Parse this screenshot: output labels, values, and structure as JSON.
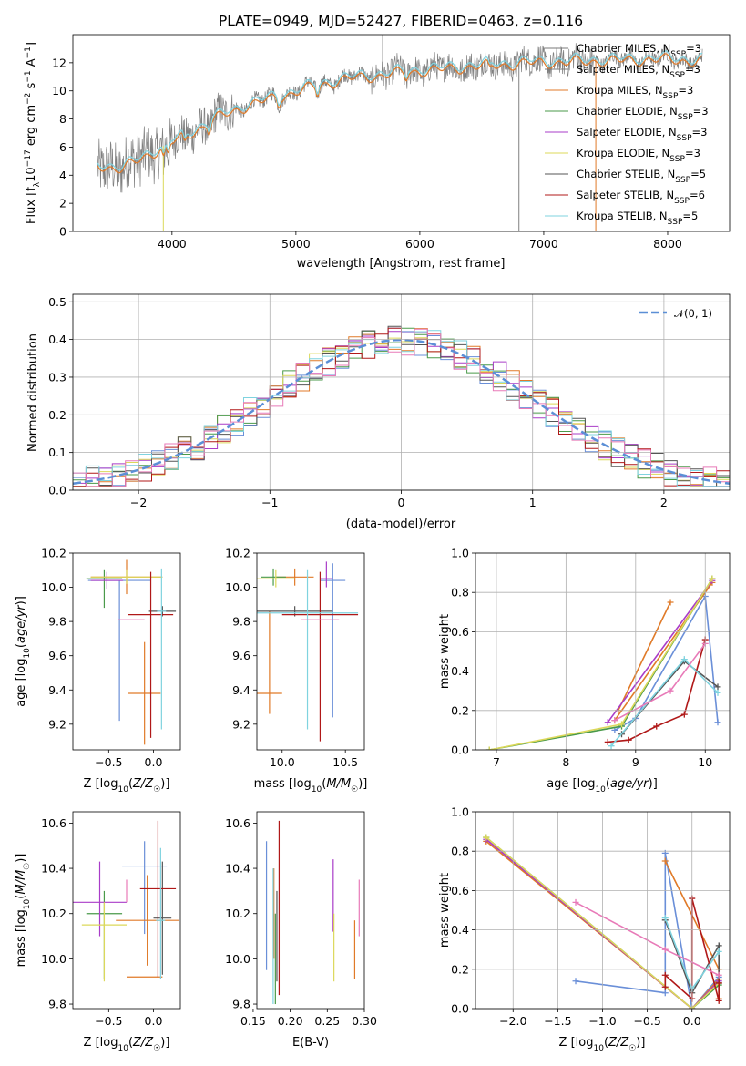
{
  "figure": {
    "title": "PLATE=0949, MJD=52427, FIBERID=0463, z=0.116"
  },
  "palette": {
    "Chabrier MILES": "#6a8fd8",
    "Salpeter MILES": "#e07a28",
    "Kroupa MILES": "#e07a28",
    "Chabrier ELODIE": "#4a9a4a",
    "Salpeter ELODIE": "#a93cc8",
    "Kroupa ELODIE": "#dcd85a",
    "Chabrier STELIB": "#555555",
    "Salpeter STELIB": "#b01818",
    "Kroupa STELIB": "#7fd3df",
    "data": "#808080",
    "gauss": "#5b8fd6",
    "pink": "#e87ab8"
  },
  "chart_data": [
    {
      "id": "spectrum",
      "type": "line",
      "title": "PLATE=0949, MJD=52427, FIBERID=0463, z=0.116",
      "xlabel": "wavelength [Angstrom, rest frame]",
      "ylabel": "Flux [f_λ10^-17 erg cm^-2 s^-1 A^-1]",
      "xlim": [
        3200,
        8500
      ],
      "ylim": [
        0,
        14
      ],
      "xticks": [
        "4000",
        "5000",
        "6000",
        "7000",
        "8000"
      ],
      "yticks": [
        "0",
        "2",
        "4",
        "6",
        "8",
        "10",
        "12"
      ],
      "continuum": {
        "x": [
          3400,
          3600,
          3800,
          4000,
          4200,
          4400,
          4600,
          4800,
          5000,
          5200,
          5400,
          5600,
          5800,
          6000,
          6200,
          6400,
          6600,
          6800,
          7000,
          7200,
          7400,
          7600,
          7800,
          8000,
          8200,
          8280
        ],
        "y": [
          4.8,
          4.5,
          5.5,
          6.4,
          7.3,
          8.3,
          9.0,
          9.5,
          10.0,
          10.5,
          10.9,
          11.1,
          11.3,
          11.5,
          11.6,
          11.8,
          11.9,
          12.0,
          12.1,
          12.1,
          12.2,
          12.2,
          12.3,
          12.3,
          12.2,
          12.2
        ]
      },
      "data_range": [
        3400,
        8280
      ],
      "legend": [
        "Chabrier MILES, N_SSP=3",
        "Salpeter MILES, N_SSP=3",
        "Kroupa MILES, N_SSP=3",
        "Chabrier ELODIE, N_SSP=3",
        "Salpeter ELODIE, N_SSP=3",
        "Kroupa ELODIE, N_SSP=3",
        "Chabrier STELIB, N_SSP=5",
        "Salpeter STELIB, N_SSP=6",
        "Kroupa STELIB, N_SSP=5"
      ],
      "legend_position": "right"
    },
    {
      "id": "residuals",
      "type": "line",
      "xlabel": "(data-model)/error",
      "ylabel": "Normed distribution",
      "xlim": [
        -2.5,
        2.5
      ],
      "ylim": [
        0,
        0.52
      ],
      "xticks": [
        "−2",
        "−1",
        "0",
        "1",
        "2"
      ],
      "yticks": [
        "0.0",
        "0.1",
        "0.2",
        "0.3",
        "0.4",
        "0.5"
      ],
      "grid": true,
      "legend": [
        "𝒩(0, 1)"
      ],
      "legend_position": "top-right",
      "gauss": {
        "mu": 0,
        "sigma": 1
      }
    },
    {
      "id": "age-vs-Z",
      "type": "scatter",
      "xlabel": "Z [log10(Z/Z☉)]",
      "ylabel": "age  [log10(age/yr)]",
      "xlim": [
        -0.9,
        0.3
      ],
      "ylim": [
        9.05,
        10.2
      ],
      "xticks": [
        "−0.5",
        "0.0"
      ],
      "yticks": [
        "9.2",
        "9.4",
        "9.6",
        "9.8",
        "10.0",
        "10.2"
      ],
      "points": [
        {
          "model": "Chabrier MILES",
          "x": -0.38,
          "y": 10.04,
          "xerr": 0.35,
          "yerr": [
            0.82,
            0.0
          ]
        },
        {
          "model": "Salpeter MILES",
          "x": -0.1,
          "y": 9.38,
          "xerr": 0.18,
          "yerr": [
            0.3,
            0.3
          ]
        },
        {
          "model": "Kroupa MILES",
          "x": -0.3,
          "y": 10.06,
          "xerr": 0.4,
          "yerr": [
            0.1,
            0.1
          ]
        },
        {
          "model": "Chabrier ELODIE",
          "x": -0.55,
          "y": 10.05,
          "xerr": 0.2,
          "yerr": [
            0.17,
            0.05
          ]
        },
        {
          "model": "Salpeter ELODIE",
          "x": -0.52,
          "y": 10.04,
          "xerr": 0.18,
          "yerr": [
            0.05,
            0.05
          ]
        },
        {
          "model": "Kroupa ELODIE",
          "x": -0.3,
          "y": 10.06,
          "xerr": 0.4,
          "yerr": [
            0.04,
            0.04
          ]
        },
        {
          "model": "Chabrier STELIB",
          "x": 0.1,
          "y": 9.86,
          "xerr": 0.15,
          "yerr": [
            0.03,
            0.03
          ]
        },
        {
          "model": "Salpeter STELIB",
          "x": -0.03,
          "y": 9.84,
          "xerr": 0.25,
          "yerr": [
            0.72,
            0.25
          ]
        },
        {
          "model": "Kroupa STELIB",
          "x": 0.09,
          "y": 9.86,
          "xerr": 0.05,
          "yerr": [
            0.69,
            0.25
          ]
        },
        {
          "model": "pink",
          "x": -0.25,
          "y": 9.81,
          "xerr": 0.15,
          "yerr": [
            0.0,
            0.0
          ]
        }
      ]
    },
    {
      "id": "age-vs-mass",
      "type": "scatter",
      "xlabel": "mass [log10(M/M☉)]",
      "ylabel": "",
      "xlim": [
        9.8,
        10.65
      ],
      "ylim": [
        9.05,
        10.2
      ],
      "xticks": [
        "10.0",
        "10.5"
      ],
      "yticks": [
        "9.2",
        "9.4",
        "9.6",
        "9.8",
        "10.0",
        "10.2"
      ],
      "points": [
        {
          "model": "Chabrier MILES",
          "x": 10.4,
          "y": 10.04,
          "xerr": 0.1,
          "yerr": [
            0.8,
            0.1
          ]
        },
        {
          "model": "Salpeter MILES",
          "x": 9.9,
          "y": 9.38,
          "xerr": 0.1,
          "yerr": [
            0.12,
            0.48
          ]
        },
        {
          "model": "Kroupa MILES",
          "x": 10.1,
          "y": 10.06,
          "xerr": 0.15,
          "yerr": [
            0.05,
            0.05
          ]
        },
        {
          "model": "Chabrier ELODIE",
          "x": 9.93,
          "y": 10.06,
          "xerr": 0.1,
          "yerr": [
            0.05,
            0.05
          ]
        },
        {
          "model": "Salpeter ELODIE",
          "x": 10.35,
          "y": 10.05,
          "xerr": 0.05,
          "yerr": [
            0.05,
            0.1
          ]
        },
        {
          "model": "Kroupa ELODIE",
          "x": 9.95,
          "y": 10.05,
          "xerr": 0.15,
          "yerr": [
            0.05,
            0.05
          ]
        },
        {
          "model": "Chabrier STELIB",
          "x": 10.1,
          "y": 9.86,
          "xerr": 0.3,
          "yerr": [
            0.03,
            0.03
          ]
        },
        {
          "model": "Salpeter STELIB",
          "x": 10.3,
          "y": 9.84,
          "xerr": 0.3,
          "yerr": [
            0.74,
            0.25
          ]
        },
        {
          "model": "Kroupa STELIB",
          "x": 10.2,
          "y": 9.85,
          "xerr": 0.4,
          "yerr": [
            0.68,
            0.25
          ]
        },
        {
          "model": "pink",
          "x": 10.3,
          "y": 9.81,
          "xerr": 0.15,
          "yerr": [
            0.0,
            0.0
          ]
        }
      ]
    },
    {
      "id": "massweight-vs-age",
      "type": "line",
      "xlabel": "age  [log10(age/yr)]",
      "ylabel": "mass weight",
      "xlim": [
        6.7,
        10.35
      ],
      "ylim": [
        0,
        1.0
      ],
      "xticks": [
        "7",
        "8",
        "9",
        "10"
      ],
      "yticks": [
        "0.0",
        "0.2",
        "0.4",
        "0.6",
        "0.8",
        "1.0"
      ],
      "grid": true,
      "series": [
        {
          "model": "Chabrier MILES",
          "x": [
            8.7,
            9.0,
            10.0,
            10.18
          ],
          "y": [
            0.1,
            0.16,
            0.78,
            0.14
          ]
        },
        {
          "model": "Salpeter MILES",
          "x": [
            8.75,
            9.5
          ],
          "y": [
            0.2,
            0.75
          ]
        },
        {
          "model": "Kroupa MILES",
          "x": [
            8.7,
            10.1
          ],
          "y": [
            0.15,
            0.85
          ]
        },
        {
          "model": "Chabrier ELODIE",
          "x": [
            6.9,
            8.8,
            10.1
          ],
          "y": [
            0.0,
            0.12,
            0.87
          ]
        },
        {
          "model": "Salpeter ELODIE",
          "x": [
            8.6,
            10.1
          ],
          "y": [
            0.14,
            0.86
          ]
        },
        {
          "model": "Kroupa ELODIE",
          "x": [
            6.9,
            8.8,
            10.1
          ],
          "y": [
            0.0,
            0.13,
            0.87
          ]
        },
        {
          "model": "Chabrier STELIB",
          "x": [
            8.8,
            9.7,
            10.18
          ],
          "y": [
            0.08,
            0.45,
            0.32
          ]
        },
        {
          "model": "Salpeter STELIB",
          "x": [
            8.6,
            8.9,
            9.3,
            9.7,
            10.0
          ],
          "y": [
            0.04,
            0.05,
            0.12,
            0.18,
            0.56
          ]
        },
        {
          "model": "Kroupa STELIB",
          "x": [
            8.65,
            9.7,
            10.18
          ],
          "y": [
            0.02,
            0.46,
            0.29
          ]
        },
        {
          "model": "pink",
          "x": [
            8.7,
            9.5,
            10.0
          ],
          "y": [
            0.15,
            0.3,
            0.54
          ]
        }
      ]
    },
    {
      "id": "mass-vs-Z",
      "type": "scatter",
      "xlabel": "Z [log10(Z/Z☉)]",
      "ylabel": "mass [log10(M/M☉)]",
      "xlim": [
        -0.9,
        0.3
      ],
      "ylim": [
        9.78,
        10.65
      ],
      "xticks": [
        "−0.5",
        "0.0"
      ],
      "yticks": [
        "9.8",
        "10.0",
        "10.2",
        "10.4",
        "10.6"
      ],
      "points": [
        {
          "model": "Chabrier MILES",
          "x": -0.1,
          "y": 10.41,
          "xerr": 0.25,
          "yerr": [
            0.3,
            0.11
          ]
        },
        {
          "model": "Salpeter MILES",
          "x": -0.1,
          "y": 9.92,
          "xerr": 0.2,
          "yerr": [
            0.0,
            0.0
          ]
        },
        {
          "model": "Kroupa MILES",
          "x": -0.07,
          "y": 10.17,
          "xerr": 0.35,
          "yerr": [
            0.2,
            0.2
          ]
        },
        {
          "model": "Chabrier ELODIE",
          "x": -0.55,
          "y": 10.2,
          "xerr": 0.2,
          "yerr": [
            0.29,
            0.1
          ]
        },
        {
          "model": "Salpeter ELODIE",
          "x": -0.6,
          "y": 10.25,
          "xerr": 0.3,
          "yerr": [
            0.15,
            0.18
          ]
        },
        {
          "model": "Kroupa ELODIE",
          "x": -0.55,
          "y": 10.15,
          "xerr": 0.25,
          "yerr": [
            0.25,
            0.1
          ]
        },
        {
          "model": "Chabrier STELIB",
          "x": 0.1,
          "y": 10.18,
          "xerr": 0.1,
          "yerr": [
            0.25,
            0.25
          ]
        },
        {
          "model": "Salpeter STELIB",
          "x": 0.05,
          "y": 10.31,
          "xerr": 0.2,
          "yerr": [
            0.39,
            0.3
          ]
        },
        {
          "model": "Kroupa STELIB",
          "x": 0.08,
          "y": 10.17,
          "xerr": 0.05,
          "yerr": [
            0.26,
            0.32
          ]
        },
        {
          "model": "pink",
          "x": -0.3,
          "y": 10.3,
          "xerr": 0.0,
          "yerr": [
            0.05,
            0.05
          ]
        }
      ]
    },
    {
      "id": "mass-vs-EBV",
      "type": "scatter",
      "xlabel": "E(B-V)",
      "ylabel": "",
      "xlim": [
        0.155,
        0.3
      ],
      "ylim": [
        9.78,
        10.65
      ],
      "xticks": [
        "0.15",
        "0.20",
        "0.25",
        "0.30"
      ],
      "yticks": [
        "9.8",
        "10.0",
        "10.2",
        "10.4",
        "10.6"
      ],
      "points": [
        {
          "model": "Chabrier MILES",
          "x": 0.168,
          "y": 10.2,
          "xerr": 0.0,
          "yerr": [
            0.25,
            0.32
          ]
        },
        {
          "model": "Salpeter MILES",
          "x": 0.287,
          "y": 10.02,
          "xerr": 0.0,
          "yerr": [
            0.11,
            0.15
          ]
        },
        {
          "model": "Kroupa MILES",
          "x": 0.178,
          "y": 10.2,
          "xerr": 0.0,
          "yerr": [
            0.2,
            0.2
          ]
        },
        {
          "model": "Chabrier ELODIE",
          "x": 0.18,
          "y": 10.05,
          "xerr": 0.0,
          "yerr": [
            0.25,
            0.15
          ]
        },
        {
          "model": "Salpeter ELODIE",
          "x": 0.258,
          "y": 10.3,
          "xerr": 0.0,
          "yerr": [
            0.18,
            0.14
          ]
        },
        {
          "model": "Kroupa ELODIE",
          "x": 0.259,
          "y": 10.06,
          "xerr": 0.0,
          "yerr": [
            0.16,
            0.14
          ]
        },
        {
          "model": "Chabrier STELIB",
          "x": 0.182,
          "y": 10.2,
          "xerr": 0.0,
          "yerr": [
            0.3,
            0.1
          ]
        },
        {
          "model": "Salpeter STELIB",
          "x": 0.185,
          "y": 10.2,
          "xerr": 0.0,
          "yerr": [
            0.36,
            0.41
          ]
        },
        {
          "model": "Kroupa STELIB",
          "x": 0.177,
          "y": 10.1,
          "xerr": 0.0,
          "yerr": [
            0.3,
            0.3
          ]
        },
        {
          "model": "pink",
          "x": 0.293,
          "y": 10.22,
          "xerr": 0.0,
          "yerr": [
            0.12,
            0.13
          ]
        }
      ]
    },
    {
      "id": "massweight-vs-Z",
      "type": "line",
      "xlabel": "Z [log10(Z/Z☉)]",
      "ylabel": "mass weight",
      "xlim": [
        -2.42,
        0.42
      ],
      "ylim": [
        0,
        1.0
      ],
      "xticks": [
        "−2.0",
        "−1.5",
        "−1.0",
        "−0.5",
        "0.0"
      ],
      "yticks": [
        "0.0",
        "0.2",
        "0.4",
        "0.6",
        "0.8",
        "1.0"
      ],
      "grid": true,
      "series": [
        {
          "model": "Chabrier MILES",
          "x": [
            -1.3,
            -0.3,
            -0.3,
            0.0,
            0.3
          ],
          "y": [
            0.14,
            0.08,
            0.79,
            0.0,
            0.16
          ]
        },
        {
          "model": "Salpeter MILES",
          "x": [
            -0.3,
            0.3,
            0.3
          ],
          "y": [
            0.75,
            0.2,
            0.05
          ]
        },
        {
          "model": "Kroupa MILES",
          "x": [
            -2.3,
            0.0,
            0.3
          ],
          "y": [
            0.85,
            0.0,
            0.15
          ]
        },
        {
          "model": "Chabrier ELODIE",
          "x": [
            -2.3,
            0.0,
            0.3
          ],
          "y": [
            0.87,
            0.0,
            0.12
          ]
        },
        {
          "model": "Salpeter ELODIE",
          "x": [
            -2.3,
            0.0,
            0.3
          ],
          "y": [
            0.86,
            0.0,
            0.14
          ]
        },
        {
          "model": "Kroupa ELODIE",
          "x": [
            -2.3,
            0.0,
            0.3
          ],
          "y": [
            0.87,
            0.0,
            0.13
          ]
        },
        {
          "model": "Chabrier STELIB",
          "x": [
            -0.3,
            0.0,
            0.3,
            0.3
          ],
          "y": [
            0.45,
            0.08,
            0.32,
            0.13
          ]
        },
        {
          "model": "Salpeter STELIB",
          "x": [
            -0.3,
            -0.3,
            0.0,
            0.0,
            0.3,
            0.3
          ],
          "y": [
            0.11,
            0.17,
            0.05,
            0.56,
            0.04,
            0.13
          ]
        },
        {
          "model": "Kroupa STELIB",
          "x": [
            -0.3,
            0.0,
            0.3
          ],
          "y": [
            0.46,
            0.1,
            0.29
          ]
        },
        {
          "model": "pink",
          "x": [
            -1.3,
            -0.3,
            0.3
          ],
          "y": [
            0.54,
            0.3,
            0.17
          ]
        }
      ]
    }
  ]
}
